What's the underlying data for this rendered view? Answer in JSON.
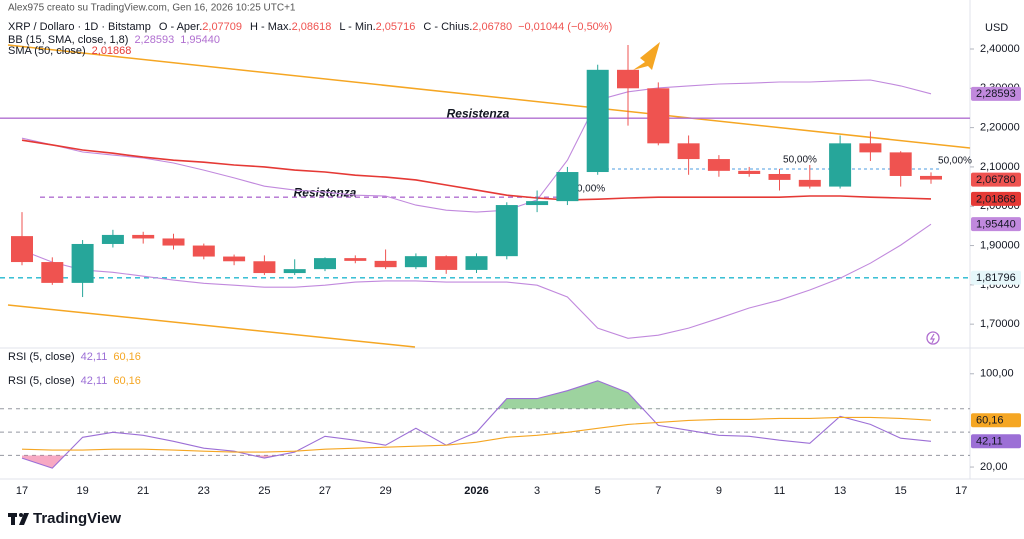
{
  "header": {
    "credit": "Alex975 creato su TradingView.com, Gen 16, 2026 10:25 UTC+1",
    "symbol": "XRP / Dollaro · 1D · Bitstamp",
    "ohlc": [
      {
        "label": "O - Aper.",
        "value": "2,07709"
      },
      {
        "label": "H - Max.",
        "value": "2,08618"
      },
      {
        "label": "L - Min.",
        "value": "2,05716"
      },
      {
        "label": "C - Chius.",
        "value": "2,06780"
      }
    ],
    "change": "−0,01044 (−0,50%)"
  },
  "footer": {
    "brand": "TradingView"
  },
  "chart_data": [
    {
      "type": "candlestick",
      "unit": "USD",
      "categories": [
        "17",
        null,
        "19",
        null,
        "21",
        null,
        "23",
        null,
        "25",
        null,
        "27",
        null,
        "29",
        null,
        null,
        "2026",
        null,
        "3",
        null,
        "5",
        null,
        "7",
        null,
        "9",
        null,
        "11",
        null,
        "13",
        null,
        "15",
        null,
        "17"
      ],
      "open": [
        1.924,
        1.858,
        1.805,
        1.904,
        1.927,
        1.918,
        1.9,
        1.872,
        1.86,
        1.83,
        1.84,
        1.868,
        1.861,
        1.845,
        1.873,
        1.838,
        1.873,
        2.003,
        2.013,
        2.087,
        2.347,
        2.3,
        2.16,
        2.12,
        2.09,
        2.082,
        2.067,
        2.05,
        2.16,
        2.137,
        2.07709,
        null
      ],
      "high": [
        1.985,
        1.87,
        1.914,
        1.94,
        1.935,
        1.93,
        1.905,
        1.877,
        1.875,
        1.865,
        1.87,
        1.875,
        1.89,
        1.88,
        1.875,
        1.88,
        2.01,
        2.04,
        2.1,
        2.36,
        2.41,
        2.315,
        2.18,
        2.13,
        2.1,
        2.095,
        2.105,
        2.18,
        2.19,
        2.14,
        2.08618,
        null
      ],
      "low": [
        1.85,
        1.8,
        1.769,
        1.895,
        1.905,
        1.89,
        1.865,
        1.85,
        1.825,
        1.825,
        1.835,
        1.855,
        1.84,
        1.84,
        1.828,
        1.83,
        1.865,
        1.985,
        2.003,
        2.08,
        2.205,
        2.155,
        2.08,
        2.075,
        2.075,
        2.04,
        2.045,
        2.045,
        2.115,
        2.05,
        2.05716,
        null
      ],
      "close": [
        1.858,
        1.805,
        1.904,
        1.927,
        1.918,
        1.9,
        1.872,
        1.86,
        1.83,
        1.84,
        1.868,
        1.861,
        1.845,
        1.873,
        1.838,
        1.873,
        2.003,
        2.013,
        2.087,
        2.347,
        2.3,
        2.16,
        2.12,
        2.09,
        2.082,
        2.067,
        2.05,
        2.16,
        2.137,
        2.077,
        2.0678,
        null
      ],
      "up_color": "#26a69a",
      "down_color": "#ef5350",
      "series": [
        {
          "color": "#c189dd",
          "values": [
            2.173,
            2.156,
            2.138,
            2.13,
            2.123,
            2.11,
            2.092,
            2.072,
            2.051,
            2.041,
            2.036,
            2.028,
            2.026,
            2.003,
            1.99,
            1.985,
            1.99,
            2.016,
            2.117,
            2.27,
            2.291,
            2.301,
            2.306,
            2.311,
            2.313,
            2.316,
            2.316,
            2.319,
            2.321,
            2.306,
            2.28593,
            null
          ]
        },
        {
          "color": "#c189dd",
          "values": [
            1.888,
            1.858,
            1.838,
            1.832,
            1.822,
            1.812,
            1.804,
            1.799,
            1.794,
            1.794,
            1.799,
            1.807,
            1.81,
            1.81,
            1.807,
            1.807,
            1.807,
            1.799,
            1.769,
            1.69,
            1.664,
            1.672,
            1.69,
            1.715,
            1.741,
            1.761,
            1.787,
            1.817,
            1.855,
            1.901,
            1.9544,
            null
          ]
        },
        {
          "color": "#e53935",
          "values": [
            2.168,
            2.156,
            2.143,
            2.135,
            2.125,
            2.117,
            2.112,
            2.105,
            2.1,
            2.092,
            2.087,
            2.079,
            2.074,
            2.067,
            2.054,
            2.041,
            2.028,
            2.021,
            2.016,
            2.018,
            2.021,
            2.023,
            2.023,
            2.023,
            2.023,
            2.023,
            2.026,
            2.026,
            2.023,
            2.021,
            2.01868,
            null
          ]
        }
      ],
      "legends": [
        {
          "label": "BB (15, SMA, close, 1,8)",
          "values": [
            "2,28593",
            "1,95440"
          ],
          "color": "#b06fd0"
        },
        {
          "label": "SMA (50, close)",
          "values": [
            "2,01868"
          ],
          "color": "#e53935"
        }
      ],
      "horizontal_lines": [
        {
          "value": 2.224,
          "label": "Resistenza",
          "color": "#b06fd0",
          "dashed": false
        },
        {
          "value": 2.023,
          "label": "Resistenza",
          "color": "#b06fd0",
          "dashed": true
        },
        {
          "value": 1.81796,
          "color": "#22b8cf",
          "dashed": true
        }
      ],
      "annotations": [
        "50,00%",
        "50,00%",
        "0,00%"
      ],
      "price_labels": [
        {
          "value": 2.28593,
          "label": "2,28593",
          "bg": "#c189dd",
          "fg": "#ffffff"
        },
        {
          "value": 2.0678,
          "label": "2,06780",
          "bg": "#ef5350",
          "fg": "#ffffff"
        },
        {
          "value": 2.01868,
          "label": "2,01868",
          "bg": "#e53935",
          "fg": "#ffffff"
        },
        {
          "value": 1.9544,
          "label": "1,95440",
          "bg": "#c189dd",
          "fg": "#ffffff"
        },
        {
          "value": 1.81796,
          "label": "1,81796",
          "bg": "#e6f7fa",
          "fg": "#222222"
        }
      ],
      "ylim": [
        1.647,
        2.489
      ],
      "yticks": [
        {
          "value": 1.7,
          "label": "1,70000"
        },
        {
          "value": 1.8,
          "label": "1,80000"
        },
        {
          "value": 1.9,
          "label": "1,90000"
        },
        {
          "value": 2.0,
          "label": "2,00000"
        },
        {
          "value": 2.1,
          "label": "2,10000"
        },
        {
          "value": 2.2,
          "label": "2,20000"
        },
        {
          "value": 2.3,
          "label": "2,30000"
        },
        {
          "value": 2.4,
          "label": "2,40000"
        }
      ]
    },
    {
      "type": "line",
      "series": [
        {
          "color": "#9c6fd6",
          "values": [
            27.7,
            19.1,
            45.5,
            49.8,
            47.2,
            42.1,
            36.2,
            33.6,
            27.7,
            32.8,
            46.4,
            43.0,
            38.7,
            53.2,
            38.7,
            49.8,
            78.7,
            78.7,
            85.5,
            94.0,
            83.8,
            55.7,
            51.5,
            47.2,
            46.4,
            43.0,
            40.4,
            63.4,
            56.6,
            44.7,
            42.11,
            null
          ]
        },
        {
          "color": "#f5a623",
          "values": [
            35.3,
            34.5,
            34.5,
            35.3,
            35.3,
            34.5,
            33.6,
            32.8,
            32.8,
            33.6,
            35.3,
            36.2,
            37.0,
            37.9,
            38.7,
            41.3,
            45.5,
            47.2,
            49.8,
            53.2,
            56.6,
            58.3,
            60.0,
            60.9,
            60.9,
            61.7,
            61.7,
            62.6,
            62.6,
            61.7,
            60.16,
            null
          ]
        }
      ],
      "legends": [
        {
          "label": "RSI (5, close)",
          "values": [
            "42,11",
            "60,16"
          ]
        },
        {
          "label": "RSI (5, close)",
          "values": [
            "42,11",
            "60,16"
          ]
        }
      ],
      "levels": [
        70,
        50,
        30
      ],
      "fills": [
        {
          "level": 70,
          "side": "above",
          "color": "#4caf50"
        },
        {
          "level": 30,
          "side": "below",
          "color": "#f06292"
        }
      ],
      "price_labels": [
        {
          "value": 60.16,
          "label": "60,16",
          "bg": "#f5a623",
          "fg": "#222222"
        },
        {
          "value": 42.11,
          "label": "42,11",
          "bg": "#9c6fd6",
          "fg": "#ffffff"
        }
      ],
      "ylim": [
        10.6,
        122.1
      ],
      "yticks": [
        {
          "value": 100,
          "label": "100,00"
        },
        {
          "value": 20,
          "label": "20,00"
        }
      ]
    }
  ]
}
